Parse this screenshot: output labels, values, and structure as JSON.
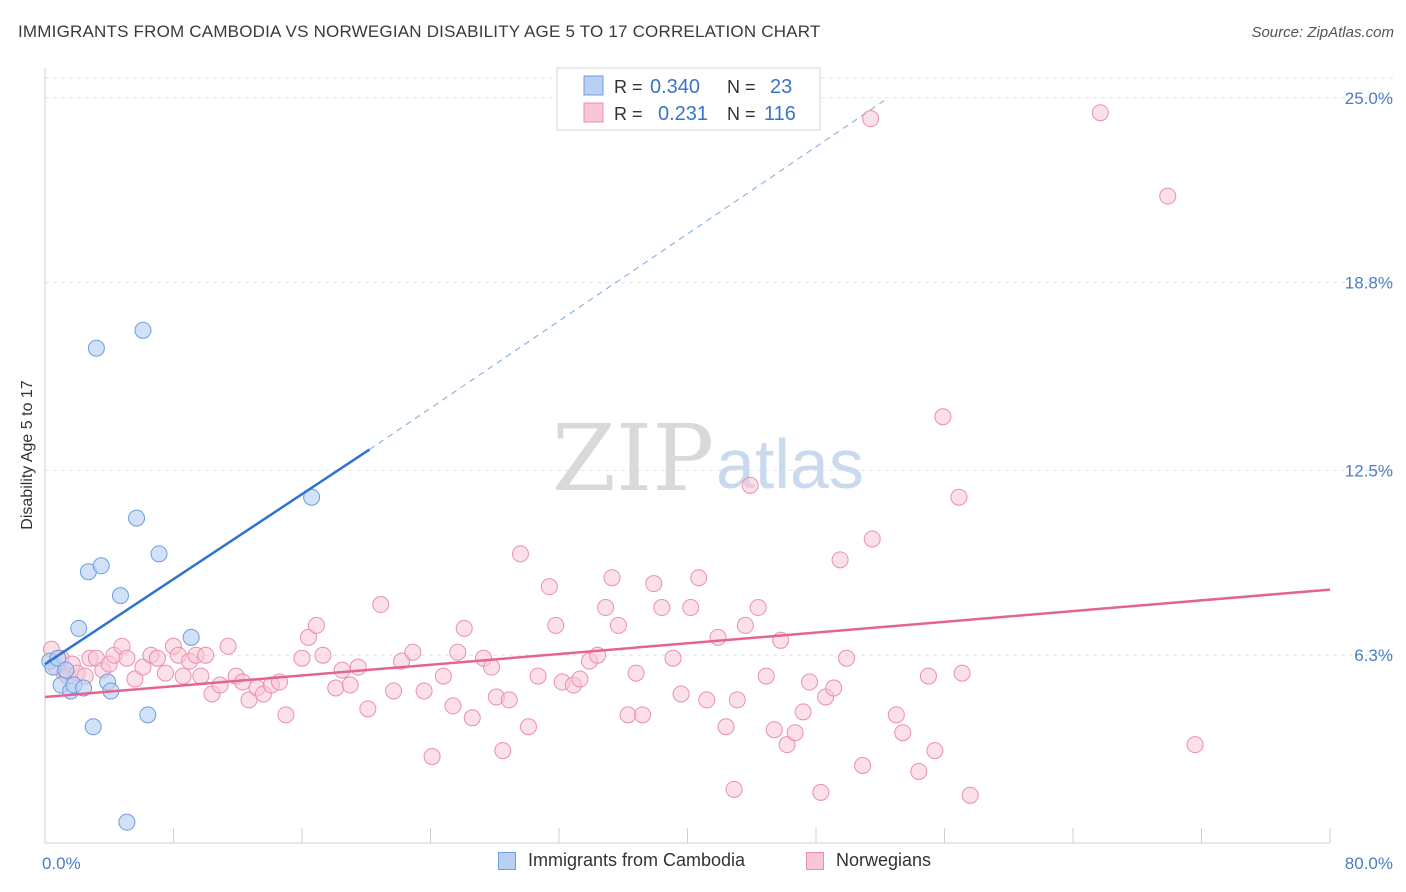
{
  "title": "IMMIGRANTS FROM CAMBODIA VS NORWEGIAN DISABILITY AGE 5 TO 17 CORRELATION CHART",
  "source": "Source: ZipAtlas.com",
  "watermark": {
    "zip": "ZIP",
    "atlas": "atlas"
  },
  "legend_box": {
    "rows": [
      {
        "r_label": "R =",
        "r_value": "0.340",
        "n_label": "N =",
        "n_value": "23"
      },
      {
        "r_label": "R =",
        "r_value": "0.231",
        "n_label": "N =",
        "n_value": "116"
      }
    ]
  },
  "bottom_legend": [
    "Immigrants from Cambodia",
    "Norwegians"
  ],
  "colors": {
    "blue_fill": "#b8d1f2",
    "blue_stroke": "#6f9de0",
    "blue_line": "#2f72cf",
    "pink_fill": "#f8c6d6",
    "pink_stroke": "#eb8fae",
    "pink_line": "#e4648f",
    "axis_label": "#4a7cc9",
    "grid": "#e2e2e2"
  },
  "chart_data": {
    "type": "scatter",
    "title": "IMMIGRANTS FROM CAMBODIA VS NORWEGIAN DISABILITY AGE 5 TO 17 CORRELATION CHART",
    "xlabel": "",
    "ylabel": "Disability Age 5 to 17",
    "xlim": [
      0,
      80
    ],
    "ylim": [
      0,
      26
    ],
    "x_tick_labels": [
      "0.0%",
      "80.0%"
    ],
    "y_ticks": [
      6.3,
      12.5,
      18.8,
      25.0
    ],
    "y_tick_labels": [
      "6.3%",
      "12.5%",
      "18.8%",
      "25.0%"
    ],
    "grid": true,
    "series": [
      {
        "name": "Immigrants from Cambodia",
        "points": [
          [
            0.3,
            6.1
          ],
          [
            0.5,
            5.9
          ],
          [
            0.8,
            6.2
          ],
          [
            1.0,
            5.3
          ],
          [
            1.3,
            5.8
          ],
          [
            1.6,
            5.1
          ],
          [
            1.8,
            5.3
          ],
          [
            2.1,
            7.2
          ],
          [
            2.4,
            5.2
          ],
          [
            2.7,
            9.1
          ],
          [
            3.0,
            3.9
          ],
          [
            3.2,
            16.6
          ],
          [
            3.5,
            9.3
          ],
          [
            3.9,
            5.4
          ],
          [
            4.1,
            5.1
          ],
          [
            4.7,
            8.3
          ],
          [
            5.7,
            10.9
          ],
          [
            6.1,
            17.2
          ],
          [
            6.4,
            4.3
          ],
          [
            7.1,
            9.7
          ],
          [
            9.1,
            6.9
          ],
          [
            16.6,
            11.6
          ],
          [
            5.1,
            0.7
          ]
        ],
        "trend": {
          "x": [
            0,
            20.2
          ],
          "y": [
            6.0,
            13.2
          ]
        },
        "trend_extension": {
          "x": [
            20.2,
            52.5
          ],
          "y": [
            13.2,
            25.0
          ]
        }
      },
      {
        "name": "Norwegians",
        "points": [
          [
            0.4,
            6.5
          ],
          [
            0.7,
            5.9
          ],
          [
            1.0,
            6.2
          ],
          [
            1.2,
            5.7
          ],
          [
            1.4,
            5.6
          ],
          [
            1.7,
            6.0
          ],
          [
            2.0,
            5.7
          ],
          [
            2.5,
            5.6
          ],
          [
            2.8,
            6.2
          ],
          [
            3.2,
            6.2
          ],
          [
            3.6,
            5.8
          ],
          [
            4.0,
            6.0
          ],
          [
            4.3,
            6.3
          ],
          [
            4.8,
            6.6
          ],
          [
            5.1,
            6.2
          ],
          [
            5.6,
            5.5
          ],
          [
            6.1,
            5.9
          ],
          [
            6.6,
            6.3
          ],
          [
            7.0,
            6.2
          ],
          [
            7.5,
            5.7
          ],
          [
            8.0,
            6.6
          ],
          [
            8.3,
            6.3
          ],
          [
            8.6,
            5.6
          ],
          [
            9.0,
            6.1
          ],
          [
            9.4,
            6.3
          ],
          [
            9.7,
            5.6
          ],
          [
            10.0,
            6.3
          ],
          [
            10.4,
            5.0
          ],
          [
            10.9,
            5.3
          ],
          [
            11.4,
            6.6
          ],
          [
            11.9,
            5.6
          ],
          [
            12.3,
            5.4
          ],
          [
            12.7,
            4.8
          ],
          [
            13.2,
            5.2
          ],
          [
            13.6,
            5.0
          ],
          [
            14.1,
            5.3
          ],
          [
            14.6,
            5.4
          ],
          [
            15.0,
            4.3
          ],
          [
            16.0,
            6.2
          ],
          [
            16.4,
            6.9
          ],
          [
            16.9,
            7.3
          ],
          [
            17.3,
            6.3
          ],
          [
            18.1,
            5.2
          ],
          [
            18.5,
            5.8
          ],
          [
            19.0,
            5.3
          ],
          [
            19.5,
            5.9
          ],
          [
            20.1,
            4.5
          ],
          [
            20.9,
            8.0
          ],
          [
            21.7,
            5.1
          ],
          [
            22.2,
            6.1
          ],
          [
            22.9,
            6.4
          ],
          [
            23.6,
            5.1
          ],
          [
            24.1,
            2.9
          ],
          [
            24.8,
            5.6
          ],
          [
            25.4,
            4.6
          ],
          [
            25.7,
            6.4
          ],
          [
            26.1,
            7.2
          ],
          [
            26.6,
            4.2
          ],
          [
            27.3,
            6.2
          ],
          [
            27.8,
            5.9
          ],
          [
            28.1,
            4.9
          ],
          [
            28.5,
            3.1
          ],
          [
            28.9,
            4.8
          ],
          [
            29.6,
            9.7
          ],
          [
            30.1,
            3.9
          ],
          [
            30.7,
            5.6
          ],
          [
            31.4,
            8.6
          ],
          [
            31.8,
            7.3
          ],
          [
            32.2,
            5.4
          ],
          [
            32.9,
            5.3
          ],
          [
            33.3,
            5.5
          ],
          [
            33.9,
            6.1
          ],
          [
            34.4,
            6.3
          ],
          [
            34.9,
            7.9
          ],
          [
            35.3,
            8.9
          ],
          [
            35.7,
            7.3
          ],
          [
            36.3,
            4.3
          ],
          [
            36.8,
            5.7
          ],
          [
            37.2,
            4.3
          ],
          [
            37.9,
            8.7
          ],
          [
            38.4,
            7.9
          ],
          [
            39.1,
            6.2
          ],
          [
            39.6,
            5.0
          ],
          [
            40.2,
            7.9
          ],
          [
            40.7,
            8.9
          ],
          [
            41.2,
            4.8
          ],
          [
            41.9,
            6.9
          ],
          [
            42.4,
            3.9
          ],
          [
            42.9,
            1.8
          ],
          [
            43.1,
            4.8
          ],
          [
            43.6,
            7.3
          ],
          [
            43.9,
            12.0
          ],
          [
            44.4,
            7.9
          ],
          [
            44.9,
            5.6
          ],
          [
            45.4,
            3.8
          ],
          [
            45.8,
            6.8
          ],
          [
            46.2,
            3.3
          ],
          [
            46.7,
            3.7
          ],
          [
            47.2,
            4.4
          ],
          [
            47.6,
            5.4
          ],
          [
            48.3,
            1.7
          ],
          [
            48.6,
            4.9
          ],
          [
            49.1,
            5.2
          ],
          [
            49.5,
            9.5
          ],
          [
            49.9,
            6.2
          ],
          [
            50.9,
            2.6
          ],
          [
            51.5,
            10.2
          ],
          [
            53.0,
            4.3
          ],
          [
            53.4,
            3.7
          ],
          [
            54.4,
            2.4
          ],
          [
            55.0,
            5.6
          ],
          [
            55.4,
            3.1
          ],
          [
            55.9,
            14.3
          ],
          [
            56.9,
            11.6
          ],
          [
            57.1,
            5.7
          ],
          [
            57.6,
            1.6
          ],
          [
            71.6,
            3.3
          ],
          [
            51.4,
            24.3
          ],
          [
            65.7,
            24.5
          ],
          [
            69.9,
            21.7
          ]
        ],
        "trend": {
          "x": [
            0,
            80
          ],
          "y": [
            4.9,
            8.5
          ]
        }
      }
    ]
  }
}
